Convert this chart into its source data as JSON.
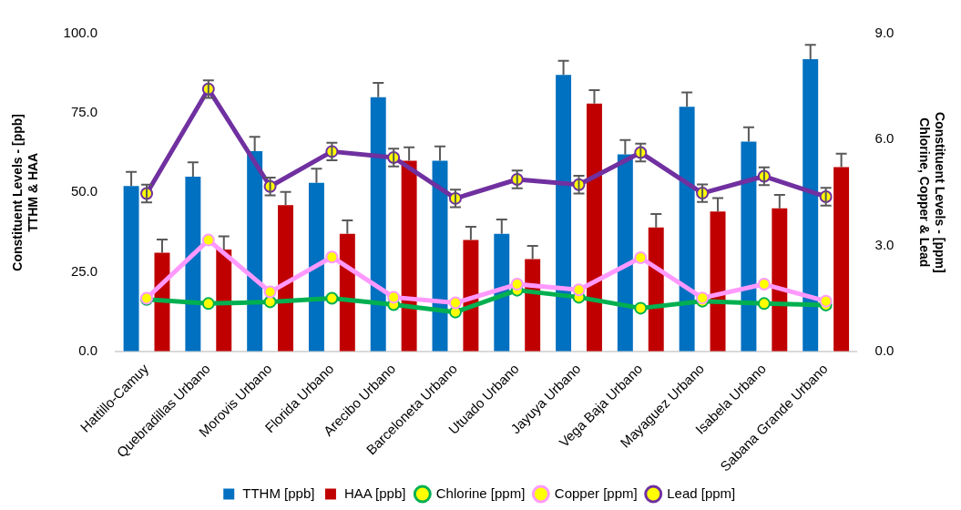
{
  "chart_data": {
    "type": "bar",
    "ylabel": "Constituent Levels - [ppb]\nTTHM & HAA",
    "y2label": "Constituent Levels - [ppm]\nChlorine, Copper & Lead",
    "categories": [
      "Hattillo-Camuy",
      "Quebradillas Urbano",
      "Morovis Urbano",
      "Florida Urbano",
      "Arecibo Urbano",
      "Barceloneta Urbano",
      "Utuado Urbano",
      "Jayuya Urbano",
      "Vega Baja Urbano",
      "Mayaguez Urbano",
      "Isabela Urbano",
      "Sabana Grande Urbano"
    ],
    "series": [
      {
        "name": "TTHM [ppb]",
        "color": "#0070c0",
        "values": [
          52,
          55,
          63,
          53,
          80,
          60,
          37,
          87,
          62,
          77,
          66,
          92
        ],
        "errors": [
          4.5,
          4.5,
          4.5,
          4.5,
          4.5,
          4.5,
          4.5,
          4.5,
          4.5,
          4.5,
          4.5,
          4.5
        ]
      },
      {
        "name": "HAA [ppb]",
        "color": "#c00000",
        "values": [
          31,
          32,
          46,
          37,
          60,
          35,
          29,
          78,
          39,
          44,
          45,
          58
        ],
        "errors": [
          4.2,
          4.2,
          4.2,
          4.2,
          4.2,
          4.2,
          4.2,
          4.2,
          4.2,
          4.2,
          4.2,
          4.2
        ]
      },
      {
        "name": "Chlorine [ppm]",
        "type": "line",
        "axis": "y2",
        "color": "#00b050",
        "values": [
          1.47,
          1.35,
          1.4,
          1.5,
          1.32,
          1.11,
          1.73,
          1.53,
          1.22,
          1.42,
          1.35,
          1.31
        ]
      },
      {
        "name": "Copper [ppm]",
        "type": "line",
        "axis": "y2",
        "color": "#ff99ff",
        "values": [
          1.5,
          3.15,
          1.68,
          2.67,
          1.53,
          1.37,
          1.9,
          1.74,
          2.65,
          1.51,
          1.9,
          1.42
        ]
      },
      {
        "name": "Lead [ppm]",
        "type": "line",
        "axis": "y2",
        "color": "#7030a0",
        "values": [
          4.47,
          7.43,
          4.67,
          5.66,
          5.49,
          4.33,
          4.87,
          4.72,
          5.63,
          4.48,
          4.96,
          4.38
        ],
        "errors": [
          0.25,
          0.25,
          0.25,
          0.25,
          0.25,
          0.25,
          0.25,
          0.25,
          0.25,
          0.25,
          0.25,
          0.25
        ]
      }
    ],
    "ylim": [
      0,
      100
    ],
    "yticks": [
      {
        "value": 0,
        "label": "0.0"
      },
      {
        "value": 25,
        "label": "25.0"
      },
      {
        "value": 50,
        "label": "50.0"
      },
      {
        "value": 75,
        "label": "75.0"
      },
      {
        "value": 100,
        "label": "100.0"
      }
    ],
    "y2lim": [
      0,
      9
    ],
    "y2ticks": [
      {
        "value": 0,
        "label": "0.0"
      },
      {
        "value": 3,
        "label": "3.0"
      },
      {
        "value": 6,
        "label": "6.0"
      },
      {
        "value": 9,
        "label": "9.0"
      }
    ],
    "grid": false,
    "legend": "bottom",
    "marker": "circle",
    "line_style": "solid"
  }
}
